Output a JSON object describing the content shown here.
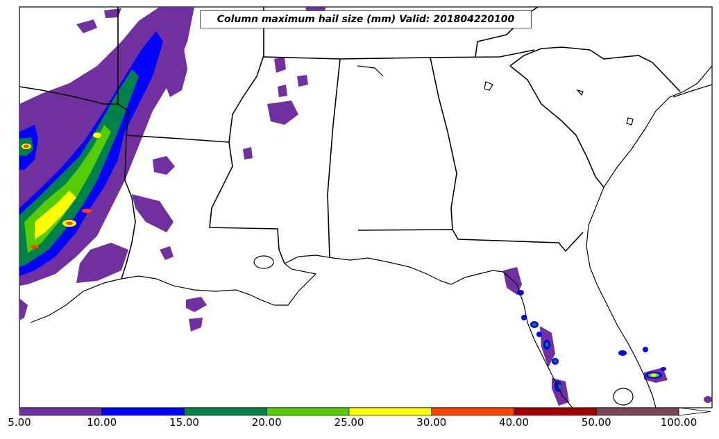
{
  "title": "Column maximum hail size (mm) Valid: 201804220100",
  "colorbar": {
    "bins": [
      {
        "from": "5.00",
        "to": "10.00",
        "color": "#7030a0"
      },
      {
        "from": "10.00",
        "to": "15.00",
        "color": "#0000ff"
      },
      {
        "from": "15.00",
        "to": "20.00",
        "color": "#00804a"
      },
      {
        "from": "20.00",
        "to": "25.00",
        "color": "#55cc00"
      },
      {
        "from": "25.00",
        "to": "30.00",
        "color": "#ffff00"
      },
      {
        "from": "30.00",
        "to": "40.00",
        "color": "#ff4400"
      },
      {
        "from": "40.00",
        "to": "50.00",
        "color": "#a00000"
      },
      {
        "from": "50.00",
        "to": "100.00",
        "color": "#7b4455"
      }
    ],
    "labels": [
      "5.00",
      "10.00",
      "15.00",
      "20.00",
      "25.00",
      "30.00",
      "40.00",
      "50.00",
      "100.00"
    ],
    "extend": "max"
  },
  "legend_colors": {
    "hail_5": "#7030a0",
    "hail_10": "#0000ff",
    "hail_15": "#00804a",
    "hail_20": "#55cc00",
    "hail_25": "#ffff00",
    "hail_30": "#ff4400",
    "hail_40": "#a00000"
  }
}
